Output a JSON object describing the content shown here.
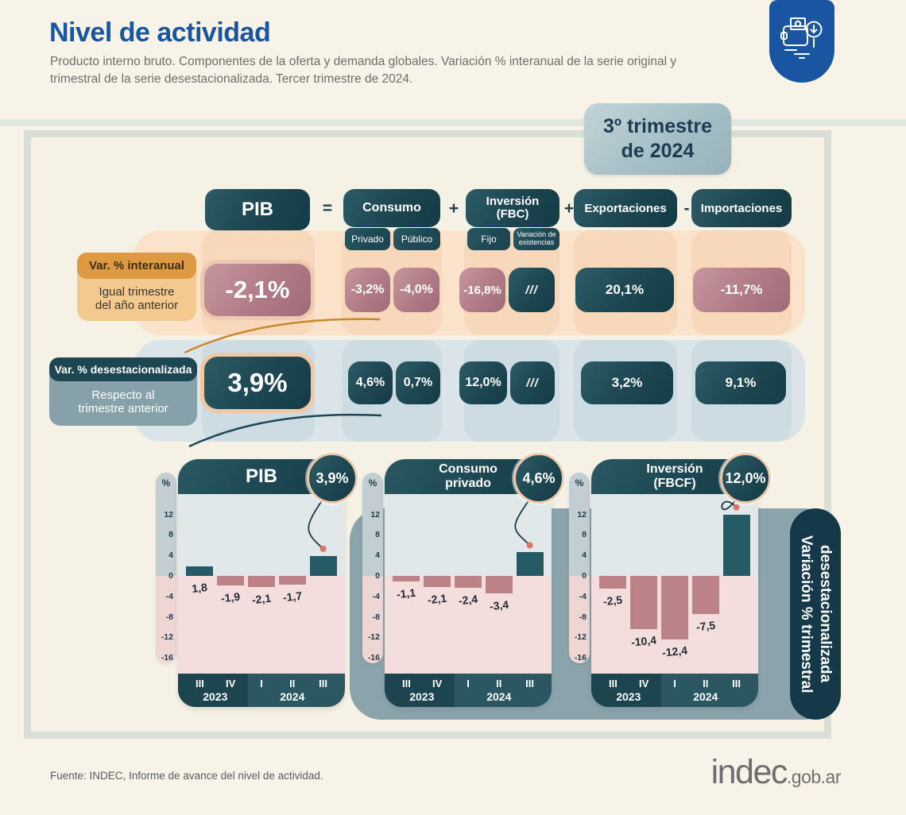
{
  "page": {
    "title": "Nivel de actividad",
    "subtitle": "Producto interno bruto. Componentes de la oferta y demanda globales. Variación % interanual de la serie original y trimestral de la serie desestacionalizada. Tercer trimestre de 2024.",
    "period_badge": "3º trimestre\nde 2024"
  },
  "equation": {
    "pib": "PIB",
    "op_equals": "=",
    "consumo": "Consumo",
    "consumo_sub": [
      "Privado",
      "Público"
    ],
    "op_plus1": "+",
    "inversion": "Inversión\n(FBC)",
    "inversion_sub": [
      "Fijo",
      "Variación de\nexistencias"
    ],
    "op_plus2": "+",
    "exportaciones": "Exportaciones",
    "op_minus": "-",
    "importaciones": "Importaciones"
  },
  "rows": {
    "interanual": {
      "tag": "Var. % interanual",
      "desc": "Igual trimestre\ndel año anterior",
      "values": {
        "pib": "-2,1%",
        "consumo_privado": "-3,2%",
        "consumo_publico": "-4,0%",
        "inversion_fijo": "-16,8%",
        "inversion_variacion": "///",
        "exportaciones": "20,1%",
        "importaciones": "-11,7%"
      }
    },
    "desestacionalizada": {
      "tag": "Var. % desestacionalizada",
      "desc": "Respecto al\ntrimestre anterior",
      "values": {
        "pib": "3,9%",
        "consumo_privado": "4,6%",
        "consumo_publico": "0,7%",
        "inversion_fijo": "12,0%",
        "inversion_variacion": "///",
        "exportaciones": "3,2%",
        "importaciones": "9,1%"
      }
    }
  },
  "charts_section": {
    "side_label": "Variación % trimestral\ndesestacionalizada"
  },
  "chart_data": [
    {
      "type": "bar",
      "title": "PIB",
      "badge": "3,9%",
      "ylabel": "%",
      "categories": [
        "III",
        "IV",
        "I",
        "II",
        "III"
      ],
      "years": [
        {
          "label": "2023",
          "quarters": 2
        },
        {
          "label": "2024",
          "quarters": 3
        }
      ],
      "values": [
        1.8,
        -1.9,
        -2.1,
        -1.7,
        3.9
      ],
      "value_labels": [
        "1,8",
        "-1,9",
        "-2,1",
        "-1,7",
        ""
      ],
      "yticks": [
        12,
        8,
        4,
        0,
        -4,
        -8,
        -12,
        -16
      ],
      "ylim": [
        -19,
        16
      ],
      "grid": false,
      "legend": false
    },
    {
      "type": "bar",
      "title": "Consumo\nprivado",
      "badge": "4,6%",
      "ylabel": "%",
      "categories": [
        "III",
        "IV",
        "I",
        "II",
        "III"
      ],
      "years": [
        {
          "label": "2023",
          "quarters": 2
        },
        {
          "label": "2024",
          "quarters": 3
        }
      ],
      "values": [
        -1.1,
        -2.1,
        -2.4,
        -3.4,
        4.6
      ],
      "value_labels": [
        "-1,1",
        "-2,1",
        "-2,4",
        "-3,4",
        ""
      ],
      "yticks": [
        12,
        8,
        4,
        0,
        -4,
        -8,
        -12,
        -16
      ],
      "ylim": [
        -19,
        16
      ],
      "grid": false,
      "legend": false
    },
    {
      "type": "bar",
      "title": "Inversión\n(FBCF)",
      "badge": "12,0%",
      "ylabel": "%",
      "categories": [
        "III",
        "IV",
        "I",
        "II",
        "III"
      ],
      "years": [
        {
          "label": "2023",
          "quarters": 2
        },
        {
          "label": "2024",
          "quarters": 3
        }
      ],
      "values": [
        -2.5,
        -10.4,
        -12.4,
        -7.5,
        12.0
      ],
      "value_labels": [
        "-2,5",
        "-10,4",
        "-12,4",
        "-7,5",
        ""
      ],
      "yticks": [
        12,
        8,
        4,
        0,
        -4,
        -8,
        -12,
        -16
      ],
      "ylim": [
        -19,
        16
      ],
      "grid": false,
      "legend": false
    }
  ],
  "palette": {
    "accent_blue": "#1a56a0",
    "dark_teal": "#1c4651",
    "mauve": "#b07b85",
    "peach_band": "#fbe2ca",
    "blue_band": "#dbe5e9",
    "orange_label": "#dd9a42",
    "bar_positive": "#265a64",
    "bar_negative": "#bb8287",
    "plot_positive_bg": "#e0e8ea",
    "plot_negative_bg": "#f4dedd",
    "gray_band": "#8ba4ac",
    "sidebar": "#16394a",
    "connector_dot": "#df756c"
  },
  "footer": {
    "source": "Fuente: INDEC, Informe de avance del nivel de actividad.",
    "logo": "indec",
    "logo_suffix": ".gob.ar"
  }
}
